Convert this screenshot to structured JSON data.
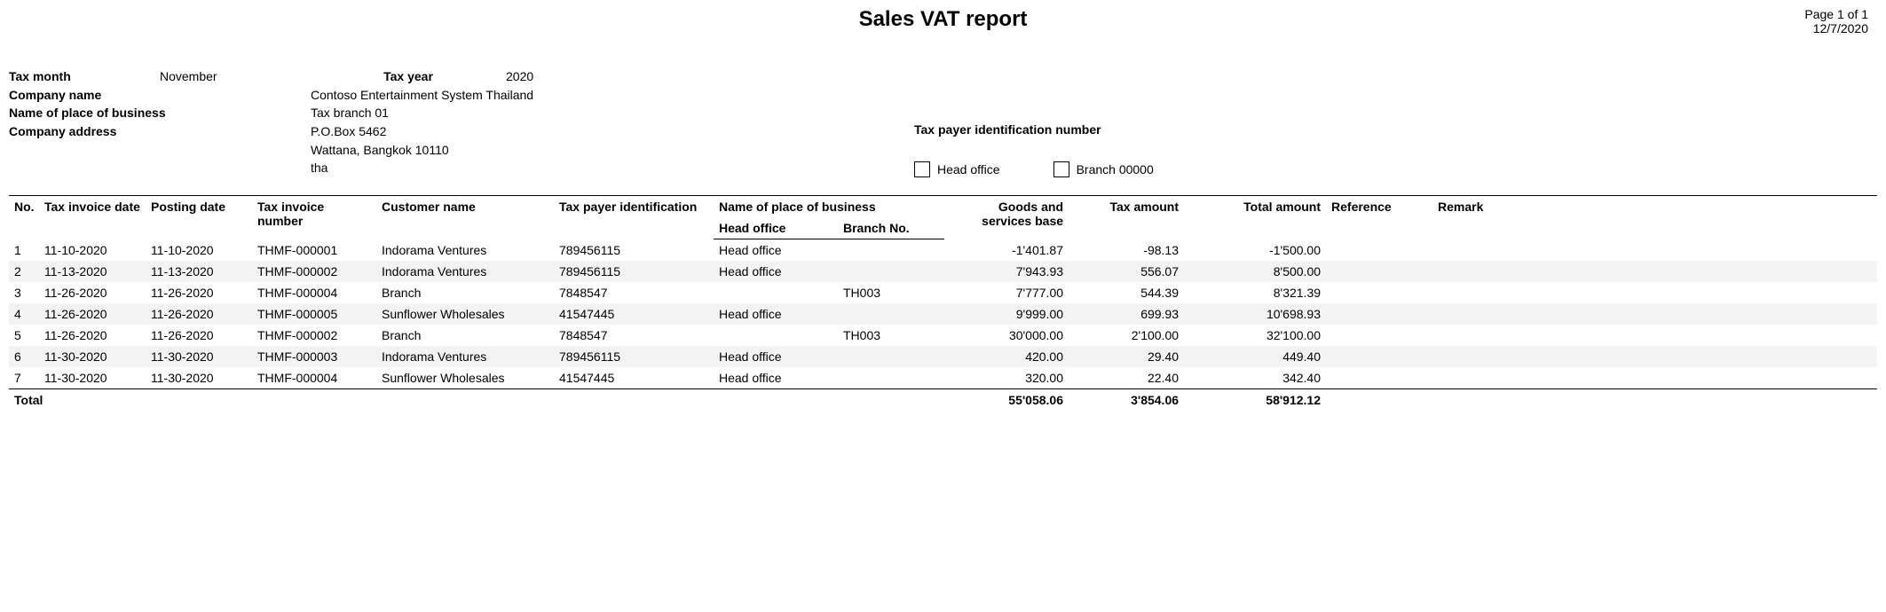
{
  "report": {
    "title": "Sales VAT report",
    "page_label": "Page 1 of 1",
    "date": "12/7/2020"
  },
  "info": {
    "tax_month_label": "Tax month",
    "tax_month": "November",
    "tax_year_label": "Tax year",
    "tax_year": "2020",
    "company_name_label": "Company name",
    "company_name": "Contoso Entertainment System Thailand",
    "place_label": "Name of place of business",
    "place": "Tax branch 01",
    "address_label": "Company address",
    "address_line1": "P.O.Box 5462",
    "address_line2": "Wattana, Bangkok 10110",
    "address_line3": "tha",
    "tin_label": "Tax payer identification number",
    "head_office_label": "Head office",
    "branch_label": "Branch 00000"
  },
  "columns": {
    "no": "No.",
    "tax_invoice_date": "Tax invoice date",
    "posting_date": "Posting date",
    "tax_invoice_number": "Tax invoice number",
    "customer_name": "Customer name",
    "tax_payer_identification": "Tax payer identification",
    "place_group": "Name of place of business",
    "head_office": "Head office",
    "branch_no": "Branch No.",
    "goods_services_base": "Goods and services base",
    "tax_amount": "Tax amount",
    "total_amount": "Total amount",
    "reference": "Reference",
    "remark": "Remark"
  },
  "rows": [
    {
      "no": "1",
      "tax_invoice_date": "11-10-2020",
      "posting_date": "11-10-2020",
      "tax_invoice_number": "THMF-000001",
      "customer_name": "Indorama Ventures",
      "tax_payer_identification": "789456115",
      "head_office": "Head office",
      "branch_no": "",
      "goods_services_base": "-1'401.87",
      "tax_amount": "-98.13",
      "total_amount": "-1'500.00",
      "reference": "",
      "remark": ""
    },
    {
      "no": "2",
      "tax_invoice_date": "11-13-2020",
      "posting_date": "11-13-2020",
      "tax_invoice_number": "THMF-000002",
      "customer_name": "Indorama Ventures",
      "tax_payer_identification": "789456115",
      "head_office": "Head office",
      "branch_no": "",
      "goods_services_base": "7'943.93",
      "tax_amount": "556.07",
      "total_amount": "8'500.00",
      "reference": "",
      "remark": ""
    },
    {
      "no": "3",
      "tax_invoice_date": "11-26-2020",
      "posting_date": "11-26-2020",
      "tax_invoice_number": "THMF-000004",
      "customer_name": "Branch",
      "tax_payer_identification": "7848547",
      "head_office": "",
      "branch_no": "TH003",
      "goods_services_base": "7'777.00",
      "tax_amount": "544.39",
      "total_amount": "8'321.39",
      "reference": "",
      "remark": ""
    },
    {
      "no": "4",
      "tax_invoice_date": "11-26-2020",
      "posting_date": "11-26-2020",
      "tax_invoice_number": "THMF-000005",
      "customer_name": "Sunflower Wholesales",
      "tax_payer_identification": "41547445",
      "head_office": "Head office",
      "branch_no": "",
      "goods_services_base": "9'999.00",
      "tax_amount": "699.93",
      "total_amount": "10'698.93",
      "reference": "",
      "remark": ""
    },
    {
      "no": "5",
      "tax_invoice_date": "11-26-2020",
      "posting_date": "11-26-2020",
      "tax_invoice_number": "THMF-000002",
      "customer_name": "Branch",
      "tax_payer_identification": "7848547",
      "head_office": "",
      "branch_no": "TH003",
      "goods_services_base": "30'000.00",
      "tax_amount": "2'100.00",
      "total_amount": "32'100.00",
      "reference": "",
      "remark": ""
    },
    {
      "no": "6",
      "tax_invoice_date": "11-30-2020",
      "posting_date": "11-30-2020",
      "tax_invoice_number": "THMF-000003",
      "customer_name": "Indorama Ventures",
      "tax_payer_identification": "789456115",
      "head_office": "Head office",
      "branch_no": "",
      "goods_services_base": "420.00",
      "tax_amount": "29.40",
      "total_amount": "449.40",
      "reference": "",
      "remark": ""
    },
    {
      "no": "7",
      "tax_invoice_date": "11-30-2020",
      "posting_date": "11-30-2020",
      "tax_invoice_number": "THMF-000004",
      "customer_name": "Sunflower Wholesales",
      "tax_payer_identification": "41547445",
      "head_office": "Head office",
      "branch_no": "",
      "goods_services_base": "320.00",
      "tax_amount": "22.40",
      "total_amount": "342.40",
      "reference": "",
      "remark": ""
    }
  ],
  "totals": {
    "label": "Total",
    "goods_services_base": "55'058.06",
    "tax_amount": "3'854.06",
    "total_amount": "58'912.12"
  }
}
